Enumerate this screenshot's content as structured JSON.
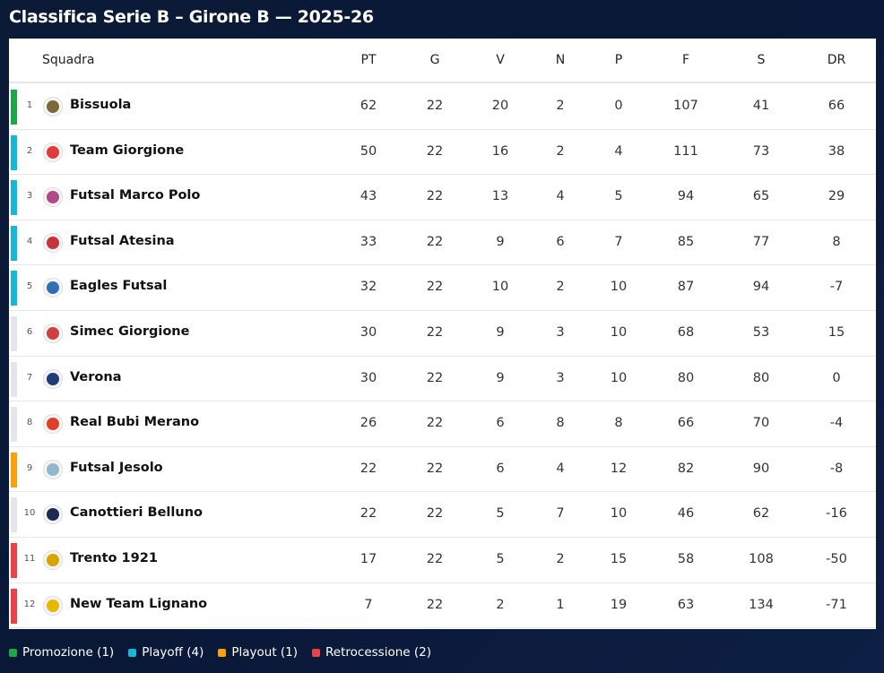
{
  "title": "Classifica Serie B – Girone B — 2025-26",
  "columns": {
    "team": "Squadra",
    "stats": [
      "PT",
      "G",
      "V",
      "N",
      "P",
      "F",
      "S",
      "DR"
    ]
  },
  "zone_colors": {
    "promozione": "#1fa64a",
    "playoff": "#18b7d6",
    "playout": "#f5a20c",
    "retrocessione": "#e8424a",
    "none": "#e3e6ea"
  },
  "rows": [
    {
      "pos": "1",
      "team": "Bissuola",
      "zone": "promozione",
      "logo": "crest-icon",
      "logo_color": "#7a6a3a",
      "stats": [
        "62",
        "22",
        "20",
        "2",
        "0",
        "107",
        "41",
        "66"
      ]
    },
    {
      "pos": "2",
      "team": "Team Giorgione",
      "zone": "playoff",
      "logo": "shield-icon",
      "logo_color": "#e03a3a",
      "stats": [
        "50",
        "22",
        "16",
        "2",
        "4",
        "111",
        "73",
        "38"
      ]
    },
    {
      "pos": "3",
      "team": "Futsal Marco Polo",
      "zone": "playoff",
      "logo": "crest-icon",
      "logo_color": "#b04a8a",
      "stats": [
        "43",
        "22",
        "13",
        "4",
        "5",
        "94",
        "65",
        "29"
      ]
    },
    {
      "pos": "4",
      "team": "Futsal Atesina",
      "zone": "playoff",
      "logo": "shield-icon",
      "logo_color": "#c8323c",
      "stats": [
        "33",
        "22",
        "9",
        "6",
        "7",
        "85",
        "77",
        "8"
      ]
    },
    {
      "pos": "5",
      "team": "Eagles Futsal",
      "zone": "playoff",
      "logo": "eagle-icon",
      "logo_color": "#2f6fb8",
      "stats": [
        "32",
        "22",
        "10",
        "2",
        "10",
        "87",
        "94",
        "-7"
      ]
    },
    {
      "pos": "6",
      "team": "Simec Giorgione",
      "zone": "none",
      "logo": "crest-icon",
      "logo_color": "#d04040",
      "stats": [
        "30",
        "22",
        "9",
        "3",
        "10",
        "68",
        "53",
        "15"
      ]
    },
    {
      "pos": "7",
      "team": "Verona",
      "zone": "none",
      "logo": "crest-icon",
      "logo_color": "#1f3c7a",
      "stats": [
        "30",
        "22",
        "9",
        "3",
        "10",
        "80",
        "80",
        "0"
      ]
    },
    {
      "pos": "8",
      "team": "Real Bubi Merano",
      "zone": "none",
      "logo": "shield-icon",
      "logo_color": "#e0402a",
      "stats": [
        "26",
        "22",
        "6",
        "8",
        "8",
        "66",
        "70",
        "-4"
      ]
    },
    {
      "pos": "9",
      "team": "Futsal Jesolo",
      "zone": "playout",
      "logo": "crest-icon",
      "logo_color": "#8fb8d0",
      "stats": [
        "22",
        "22",
        "6",
        "4",
        "12",
        "82",
        "90",
        "-8"
      ]
    },
    {
      "pos": "10",
      "team": "Canottieri Belluno",
      "zone": "none",
      "logo": "crest-icon",
      "logo_color": "#1d2a55",
      "stats": [
        "22",
        "22",
        "5",
        "7",
        "10",
        "46",
        "62",
        "-16"
      ]
    },
    {
      "pos": "11",
      "team": "Trento 1921",
      "zone": "retrocessione",
      "logo": "shield-icon",
      "logo_color": "#d9a400",
      "stats": [
        "17",
        "22",
        "5",
        "2",
        "15",
        "58",
        "108",
        "-50"
      ]
    },
    {
      "pos": "12",
      "team": "New Team Lignano",
      "zone": "retrocessione",
      "logo": "crest-icon",
      "logo_color": "#e6b800",
      "stats": [
        "7",
        "22",
        "2",
        "1",
        "19",
        "63",
        "134",
        "-71"
      ]
    }
  ],
  "legend": [
    {
      "label": "Promozione (1)",
      "zone": "promozione"
    },
    {
      "label": "Playoff (4)",
      "zone": "playoff"
    },
    {
      "label": "Playout (1)",
      "zone": "playout"
    },
    {
      "label": "Retrocessione (2)",
      "zone": "retrocessione"
    }
  ]
}
